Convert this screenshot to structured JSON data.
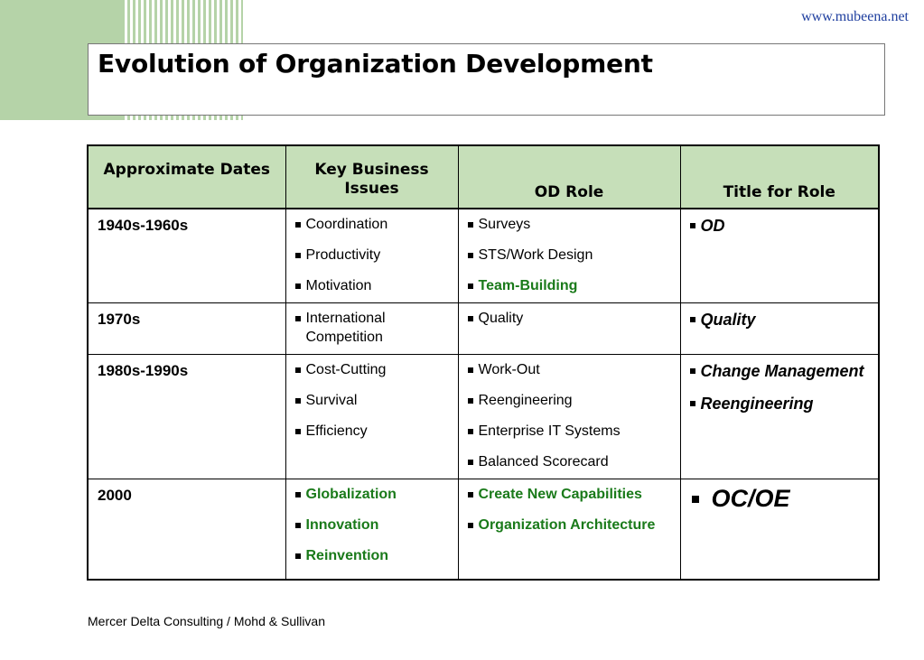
{
  "site_url": "www.mubeena.net",
  "title": "Evolution of Organization Development",
  "table": {
    "headers": [
      "Approximate Dates",
      "Key Business Issues",
      "OD Role",
      "Title for Role"
    ],
    "rows": [
      {
        "date": "1940s-1960s",
        "issues": [
          {
            "text": "Coordination",
            "green": false
          },
          {
            "text": "Productivity",
            "green": false
          },
          {
            "text": "Motivation",
            "green": false
          }
        ],
        "roles": [
          {
            "text": "Surveys",
            "green": false
          },
          {
            "text": "STS/Work Design",
            "green": false
          },
          {
            "text": "Team-Building",
            "green": true
          }
        ],
        "titles": [
          {
            "text": "OD",
            "big": false
          }
        ]
      },
      {
        "date": "1970s",
        "issues": [
          {
            "text": "International Competition",
            "green": false
          }
        ],
        "roles": [
          {
            "text": "Quality",
            "green": false
          }
        ],
        "titles": [
          {
            "text": "Quality",
            "big": false
          }
        ]
      },
      {
        "date": "1980s-1990s",
        "issues": [
          {
            "text": "Cost-Cutting",
            "green": false
          },
          {
            "text": "Survival",
            "green": false
          },
          {
            "text": "Efficiency",
            "green": false
          }
        ],
        "roles": [
          {
            "text": "Work-Out",
            "green": false
          },
          {
            "text": "Reengineering",
            "green": false
          },
          {
            "text": "Enterprise IT Systems",
            "green": false
          },
          {
            "text": "Balanced Scorecard",
            "green": false
          }
        ],
        "titles": [
          {
            "text": "Change Management",
            "big": false
          },
          {
            "text": "Reengineering",
            "big": false
          }
        ]
      },
      {
        "date": "2000",
        "issues": [
          {
            "text": "Globalization",
            "green": true
          },
          {
            "text": "Innovation",
            "green": true
          },
          {
            "text": "Reinvention",
            "green": true
          }
        ],
        "roles": [
          {
            "text": "Create New Capabilities",
            "green": true
          },
          {
            "text": "Organization Architecture",
            "green": true
          }
        ],
        "titles": [
          {
            "text": "OC/OE",
            "big": true
          }
        ]
      }
    ]
  },
  "footer": "Mercer Delta Consulting / Mohd & Sullivan",
  "colors": {
    "header_bg": "#c6dfb9",
    "accent_green": "#1a7a1a",
    "decor_green": "#b5d3a8",
    "url_blue": "#1f3f9f"
  }
}
